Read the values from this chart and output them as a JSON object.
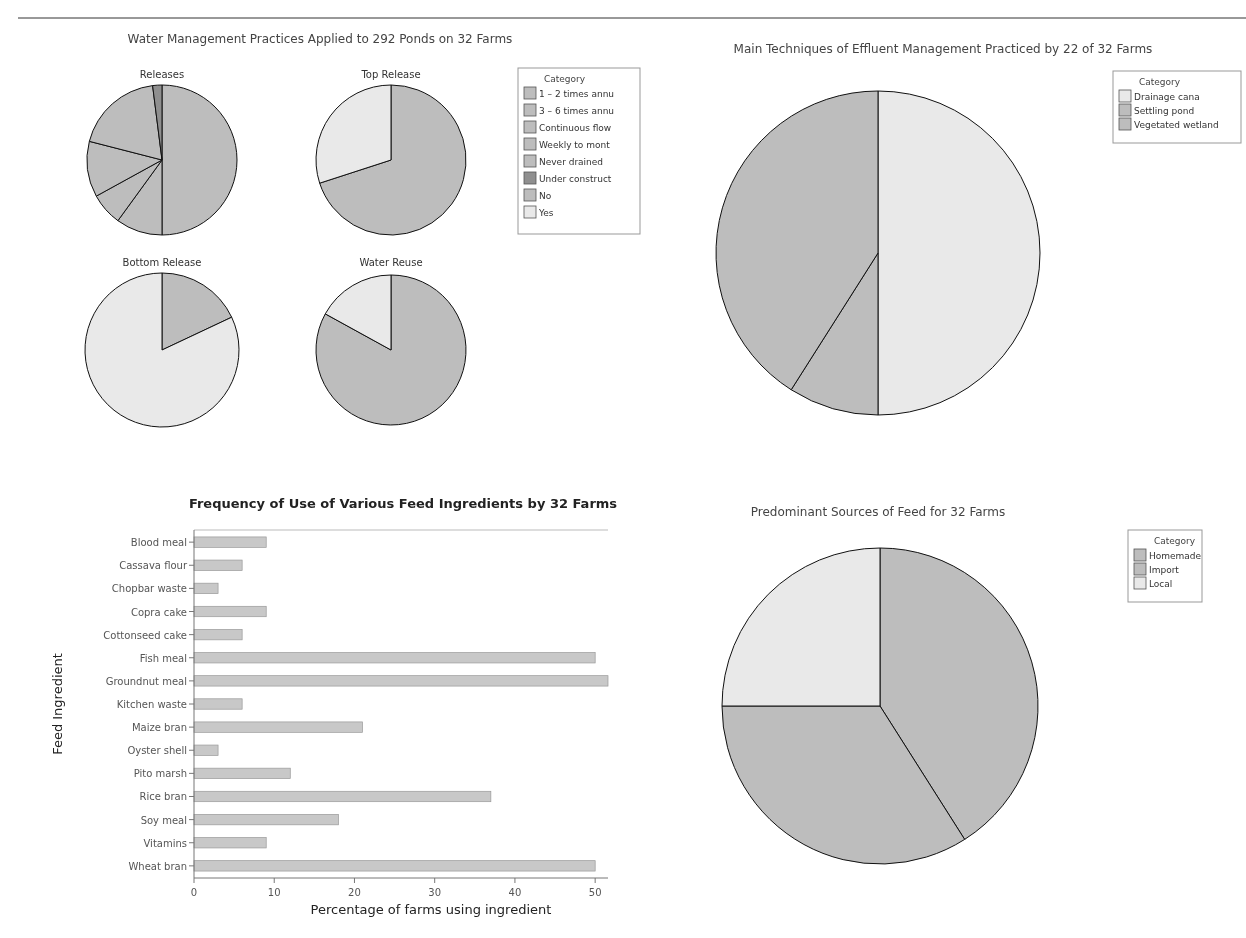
{
  "chart_data": [
    {
      "type": "pie",
      "title": "Water Management Practices Applied to 292 Ponds on 32 Farms",
      "legend_title": "Category",
      "categories": [
        "1 – 2 times annu",
        "3 – 6 times annu",
        "Continuous flow",
        "Weekly to mont",
        "Never drained",
        "Under construct",
        "No",
        "Yes"
      ],
      "colors": [
        "#bdbdbd",
        "#bdbdbd",
        "#bdbdbd",
        "#bdbdbd",
        "#bdbdbd",
        "#8f8f8f",
        "#bdbdbd",
        "#e9e9e9"
      ],
      "legend": "right",
      "series": [
        {
          "name": "Releases",
          "values": [
            50,
            10,
            7,
            12,
            19,
            2,
            0,
            0
          ]
        },
        {
          "name": "Top Release",
          "values": [
            0,
            0,
            0,
            0,
            0,
            0,
            70,
            30
          ]
        },
        {
          "name": "Bottom Release",
          "values": [
            0,
            0,
            0,
            0,
            0,
            0,
            18,
            82
          ]
        },
        {
          "name": "Water Reuse",
          "values": [
            0,
            0,
            0,
            0,
            0,
            0,
            83,
            17
          ]
        }
      ]
    },
    {
      "type": "pie",
      "title": "Main Techniques of Effluent Management Practiced by 22 of 32 Farms",
      "legend_title": "Category",
      "categories": [
        "Drainage cana",
        "Settling pond",
        "Vegetated wetland"
      ],
      "values": [
        50,
        9,
        41
      ],
      "colors": [
        "#e9e9e9",
        "#bdbdbd",
        "#bdbdbd"
      ],
      "legend": "top right"
    },
    {
      "type": "bar",
      "orientation": "horizontal",
      "title": "Frequency of Use of Various Feed Ingredients by 32 Farms",
      "xlabel": "Percentage of farms using ingredient",
      "ylabel": "Feed Ingredient",
      "categories": [
        "Blood meal",
        "Cassava flour",
        "Chopbar waste",
        "Copra cake",
        "Cottonseed cake",
        "Fish meal",
        "Groundnut meal",
        "Kitchen waste",
        "Maize bran",
        "Oyster shell",
        "Pito marsh",
        "Rice bran",
        "Soy meal",
        "Vitamins",
        "Wheat bran"
      ],
      "values": [
        9,
        6,
        3,
        9,
        6,
        50,
        51.6,
        6,
        21,
        3,
        12,
        37,
        18,
        9,
        50
      ],
      "color": "#c8c8c8",
      "xlim": [
        0,
        51.6
      ],
      "xticks": [
        0,
        10,
        20,
        30,
        40,
        50
      ],
      "grid": false
    },
    {
      "type": "pie",
      "title": "Predominant Sources of Feed for 32 Farms",
      "legend_title": "Category",
      "categories": [
        "Homemade",
        "Import",
        "Local"
      ],
      "values": [
        41,
        34,
        25
      ],
      "colors": [
        "#bdbdbd",
        "#bdbdbd",
        "#e9e9e9"
      ],
      "legend": "top right"
    }
  ]
}
